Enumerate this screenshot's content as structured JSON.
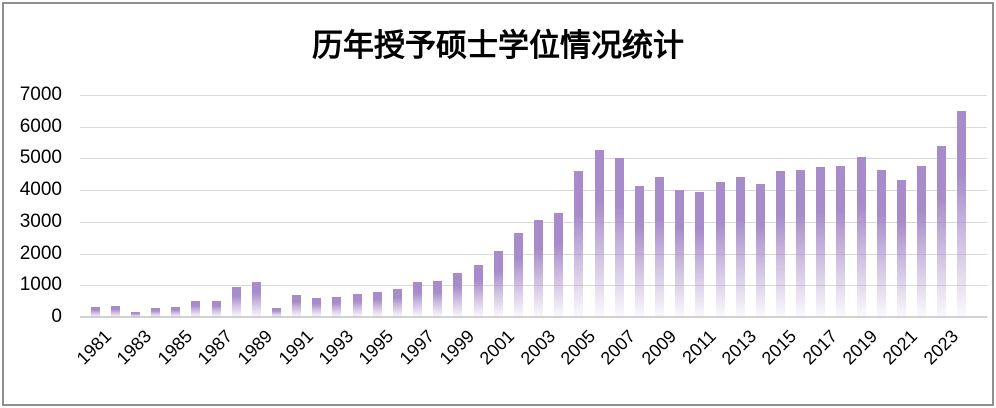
{
  "chart_data": {
    "type": "bar",
    "title": "历年授予硕士学位情况统计",
    "xlabel": "",
    "ylabel": "",
    "ylim": [
      0,
      7000
    ],
    "y_ticks": [
      0,
      1000,
      2000,
      3000,
      4000,
      5000,
      6000,
      7000
    ],
    "grid": "horizontal",
    "legend": "none",
    "x": [
      1981,
      1982,
      1983,
      1984,
      1985,
      1986,
      1987,
      1988,
      1989,
      1990,
      1991,
      1992,
      1993,
      1994,
      1995,
      1996,
      1997,
      1998,
      1999,
      2000,
      2001,
      2002,
      2003,
      2004,
      2005,
      2006,
      2007,
      2008,
      2009,
      2010,
      2011,
      2012,
      2013,
      2014,
      2015,
      2016,
      2017,
      2018,
      2019,
      2020,
      2021,
      2022,
      2023,
      2024
    ],
    "values": [
      330,
      350,
      150,
      270,
      300,
      490,
      510,
      950,
      1090,
      280,
      700,
      590,
      640,
      740,
      800,
      870,
      1100,
      1120,
      1400,
      1630,
      2080,
      2650,
      3060,
      3270,
      4600,
      5250,
      5000,
      4120,
      4430,
      4020,
      3950,
      4270,
      4430,
      4180,
      4590,
      4630,
      4730,
      4760,
      5050,
      4620,
      4330,
      4770,
      5390,
      6500
    ],
    "x_tick_labels": [
      "1981",
      "1983",
      "1985",
      "1987",
      "1989",
      "1991",
      "1993",
      "1995",
      "1997",
      "1999",
      "2001",
      "2003",
      "2005",
      "2007",
      "2009",
      "2011",
      "2013",
      "2015",
      "2017",
      "2019",
      "2021",
      "2023"
    ],
    "colors": {
      "bar": "#a78bca",
      "bar_fade_to": "#ffffff",
      "gridline": "#d9d9d9",
      "axis_line": "#d2d2d2",
      "text": "#000000",
      "frame_border": "#8f8f8f",
      "background": "#ffffff"
    }
  }
}
